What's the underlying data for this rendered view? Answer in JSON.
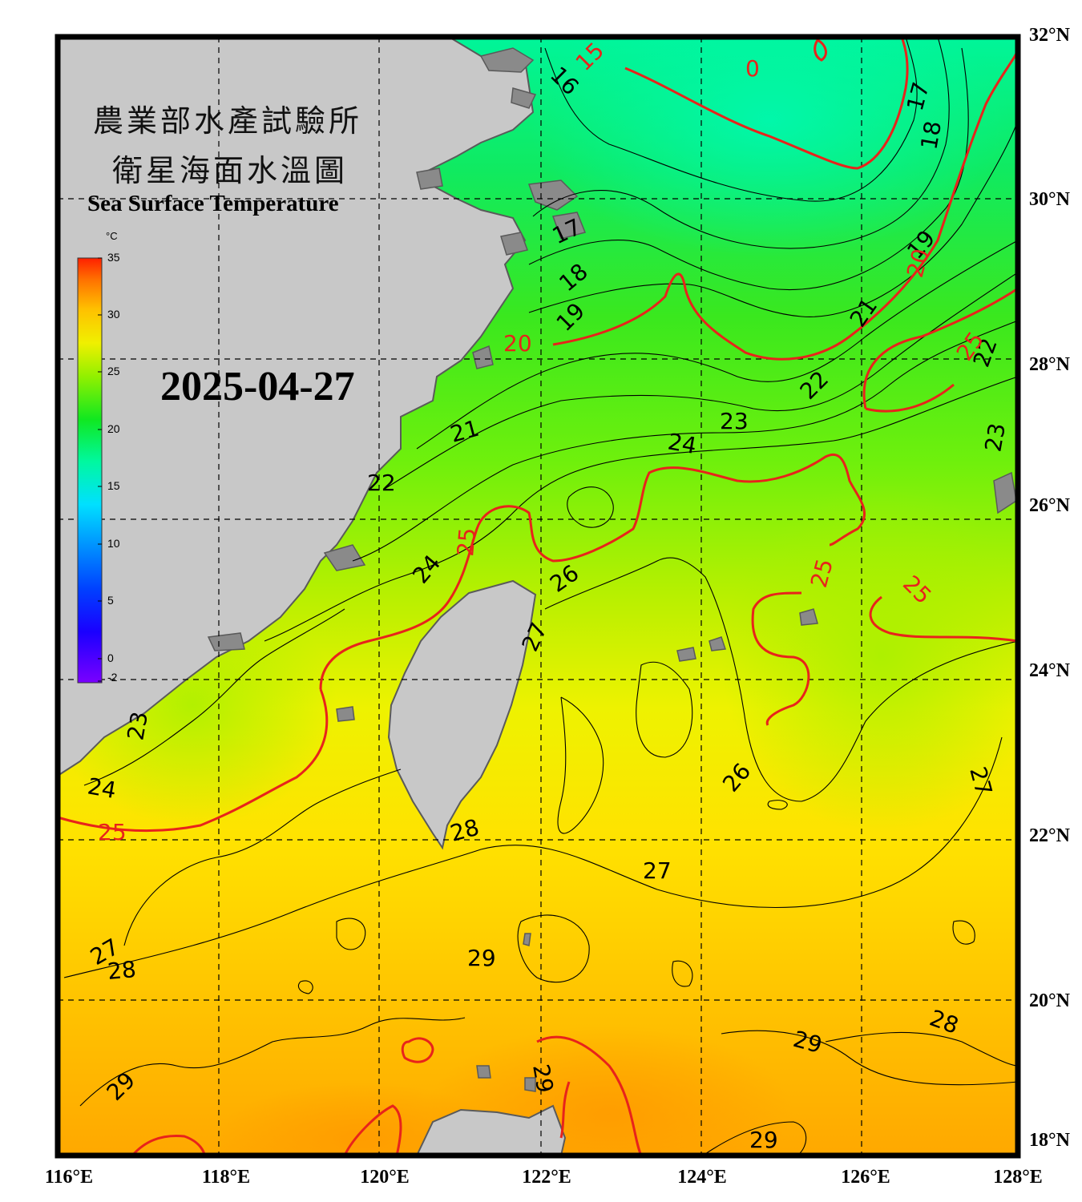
{
  "title": {
    "line1": "農業部水產試驗所",
    "line2": "衛星海面水溫圖",
    "english": "Sea Surface Temperature"
  },
  "date": "2025-04-27",
  "colorbar": {
    "unit": "°C",
    "ticks": [
      "35",
      "30",
      "25",
      "20",
      "15",
      "10",
      "5",
      "0",
      "-2"
    ],
    "range": [
      -2,
      35
    ]
  },
  "axes": {
    "latitude_labels": [
      "32°N",
      "30°N",
      "28°N",
      "26°N",
      "24°N",
      "22°N",
      "20°N",
      "18°N"
    ],
    "longitude_labels": [
      "116°E",
      "118°E",
      "120°E",
      "122°E",
      "124°E",
      "126°E",
      "128°E"
    ],
    "lat_range": [
      18,
      32
    ],
    "lon_range": [
      116,
      128
    ]
  },
  "contour_labels": {
    "black": [
      "16",
      "17",
      "18",
      "19",
      "17",
      "18",
      "19",
      "21",
      "22",
      "23",
      "24",
      "22",
      "21",
      "22",
      "23",
      "24",
      "23",
      "24",
      "26",
      "27",
      "26",
      "27",
      "28",
      "27",
      "28",
      "27",
      "28",
      "29",
      "29",
      "29",
      "29",
      "29"
    ],
    "red": [
      "15",
      "0",
      "20",
      "20",
      "25",
      "25",
      "25",
      "25",
      "25"
    ]
  },
  "colors": {
    "land": "#c8c8c8",
    "coastline": "#5a5a5a",
    "red_contour": "#e8231b",
    "black_contour": "#000000",
    "frame": "#000000",
    "grid": "#000000"
  }
}
